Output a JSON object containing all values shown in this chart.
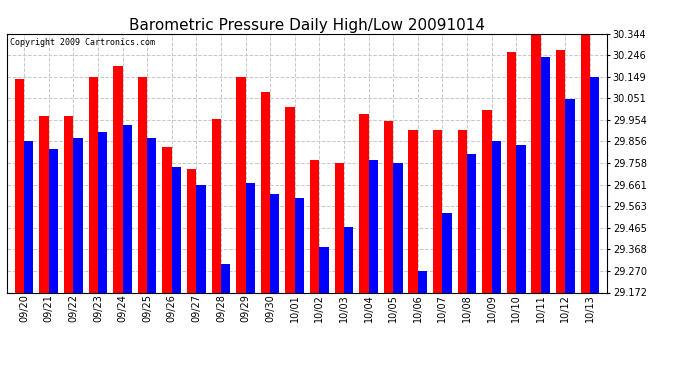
{
  "title": "Barometric Pressure Daily High/Low 20091014",
  "copyright": "Copyright 2009 Cartronics.com",
  "dates": [
    "09/20",
    "09/21",
    "09/22",
    "09/23",
    "09/24",
    "09/25",
    "09/26",
    "09/27",
    "09/28",
    "09/29",
    "09/30",
    "10/01",
    "10/02",
    "10/03",
    "10/04",
    "10/05",
    "10/06",
    "10/07",
    "10/08",
    "10/09",
    "10/10",
    "10/11",
    "10/12",
    "10/13"
  ],
  "highs": [
    30.14,
    29.97,
    29.97,
    30.15,
    30.2,
    30.15,
    29.83,
    29.73,
    29.96,
    30.15,
    30.08,
    30.01,
    29.77,
    29.76,
    29.98,
    29.95,
    29.91,
    29.91,
    29.91,
    30.0,
    30.26,
    30.36,
    30.27,
    30.36
  ],
  "lows": [
    29.86,
    29.82,
    29.87,
    29.9,
    29.93,
    29.87,
    29.74,
    29.66,
    29.3,
    29.67,
    29.62,
    29.6,
    29.38,
    29.47,
    29.77,
    29.76,
    29.27,
    29.53,
    29.8,
    29.86,
    29.84,
    30.24,
    30.05,
    30.15
  ],
  "ylim_min": 29.172,
  "ylim_max": 30.344,
  "yticks": [
    29.172,
    29.27,
    29.368,
    29.465,
    29.563,
    29.661,
    29.758,
    29.856,
    29.954,
    30.051,
    30.149,
    30.246,
    30.344
  ],
  "high_color": "#ff0000",
  "low_color": "#0000ff",
  "bg_color": "#ffffff",
  "grid_color": "#c8c8c8",
  "title_fontsize": 11,
  "bar_width": 0.38,
  "fig_width": 6.9,
  "fig_height": 3.75,
  "dpi": 100
}
